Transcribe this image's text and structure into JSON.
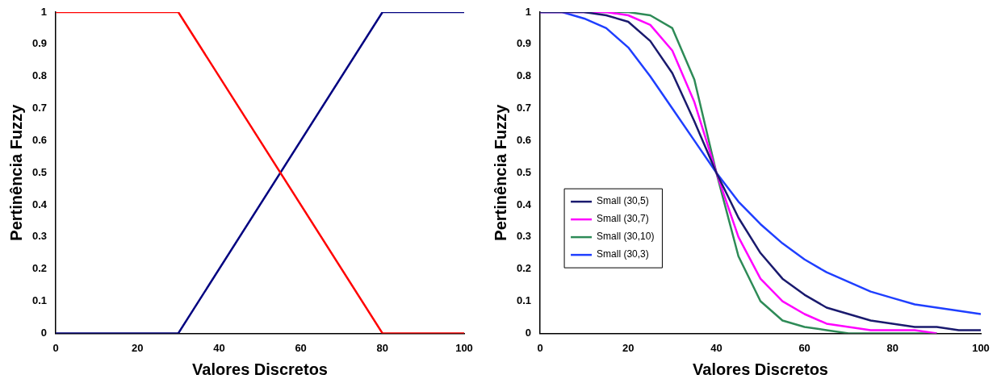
{
  "chart_data": [
    {
      "type": "line",
      "xlabel": "Valores Discretos",
      "ylabel": "Pertinência Fuzzy",
      "x": [
        0,
        30,
        80,
        100
      ],
      "series": [
        {
          "color": "#ff0000",
          "values": [
            1,
            1,
            0,
            0
          ]
        },
        {
          "color": "#000080",
          "values": [
            0,
            0,
            1,
            1
          ]
        }
      ],
      "xlim": [
        0,
        100
      ],
      "xticks": [
        0,
        20,
        40,
        60,
        80,
        100
      ],
      "ylim": [
        0,
        1
      ],
      "yticks": [
        0,
        0.1,
        0.2,
        0.3,
        0.4,
        0.5,
        0.6,
        0.7,
        0.8,
        0.9,
        1
      ],
      "grid": false,
      "legend": false,
      "marker": "none"
    },
    {
      "type": "line",
      "xlabel": "Valores Discretos",
      "ylabel": "Pertinência Fuzzy",
      "x": [
        0,
        5,
        10,
        15,
        20,
        25,
        30,
        35,
        40,
        45,
        50,
        55,
        60,
        65,
        70,
        75,
        80,
        85,
        90,
        95,
        100
      ],
      "series": [
        {
          "name": "Small (30,5)",
          "color": "#1a1a6e",
          "values": [
            1,
            1,
            1,
            0.99,
            0.97,
            0.91,
            0.81,
            0.66,
            0.5,
            0.36,
            0.25,
            0.17,
            0.12,
            0.08,
            0.06,
            0.04,
            0.03,
            0.02,
            0.02,
            0.01,
            0.01
          ]
        },
        {
          "name": "Small (30,7)",
          "color": "#ff00ff",
          "values": [
            1,
            1,
            1,
            1,
            0.99,
            0.96,
            0.88,
            0.72,
            0.5,
            0.3,
            0.17,
            0.1,
            0.06,
            0.03,
            0.02,
            0.01,
            0.01,
            0.01,
            0,
            null,
            null
          ]
        },
        {
          "name": "Small (30,10)",
          "color": "#2e8b57",
          "values": [
            null,
            null,
            1,
            1,
            1,
            0.99,
            0.95,
            0.79,
            0.5,
            0.24,
            0.1,
            0.04,
            0.02,
            0.01,
            0,
            0,
            0,
            0,
            0,
            null,
            null
          ]
        },
        {
          "name": "Small (30,3)",
          "color": "#1f3fff",
          "values": [
            1,
            1,
            0.98,
            0.95,
            0.89,
            0.8,
            0.7,
            0.6,
            0.5,
            0.41,
            0.34,
            0.28,
            0.23,
            0.19,
            0.16,
            0.13,
            0.11,
            0.09,
            0.08,
            0.07,
            0.06
          ]
        }
      ],
      "xlim": [
        0,
        100
      ],
      "xticks": [
        0,
        20,
        40,
        60,
        80,
        100
      ],
      "ylim": [
        0,
        1
      ],
      "yticks": [
        0,
        0.1,
        0.2,
        0.3,
        0.4,
        0.5,
        0.6,
        0.7,
        0.8,
        0.9,
        1
      ],
      "grid": false,
      "legend": "left",
      "marker": "none"
    }
  ]
}
